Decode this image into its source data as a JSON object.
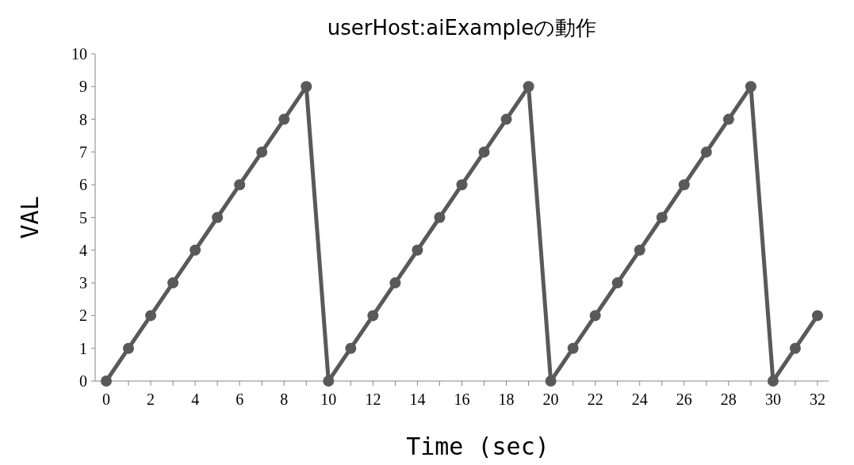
{
  "chart_data": {
    "type": "line",
    "title": "userHost:aiExampleの動作",
    "xlabel": "Time (sec)",
    "ylabel": "VAL",
    "x": [
      0,
      1,
      2,
      3,
      4,
      5,
      6,
      7,
      8,
      9,
      10,
      11,
      12,
      13,
      14,
      15,
      16,
      17,
      18,
      19,
      20,
      21,
      22,
      23,
      24,
      25,
      26,
      27,
      28,
      29,
      30,
      31,
      32
    ],
    "series": [
      {
        "color": "#595959",
        "values": [
          0,
          1,
          2,
          3,
          4,
          5,
          6,
          7,
          8,
          9,
          0,
          1,
          2,
          3,
          4,
          5,
          6,
          7,
          8,
          9,
          0,
          1,
          2,
          3,
          4,
          5,
          6,
          7,
          8,
          9,
          0,
          1,
          2
        ]
      }
    ],
    "xlim": [
      -0.5,
      32.5
    ],
    "xticks": [
      0,
      {
        "value": 1,
        "label": null
      },
      2,
      {
        "value": 3,
        "label": null
      },
      4,
      {
        "value": 5,
        "label": null
      },
      6,
      {
        "value": 7,
        "label": null
      },
      8,
      {
        "value": 9,
        "label": null
      },
      10,
      {
        "value": 11,
        "label": null
      },
      12,
      {
        "value": 13,
        "label": null
      },
      14,
      {
        "value": 15,
        "label": null
      },
      16,
      {
        "value": 17,
        "label": null
      },
      18,
      {
        "value": 19,
        "label": null
      },
      20,
      {
        "value": 21,
        "label": null
      },
      22,
      {
        "value": 23,
        "label": null
      },
      24,
      {
        "value": 25,
        "label": null
      },
      26,
      {
        "value": 27,
        "label": null
      },
      28,
      {
        "value": 29,
        "label": null
      },
      30,
      {
        "value": 31,
        "label": null
      },
      32
    ],
    "ylim": [
      0,
      10
    ],
    "yticks": [
      0,
      1,
      2,
      3,
      4,
      5,
      6,
      7,
      8,
      9,
      10
    ],
    "grid": false,
    "marker": "circle",
    "line_style": "solid"
  }
}
